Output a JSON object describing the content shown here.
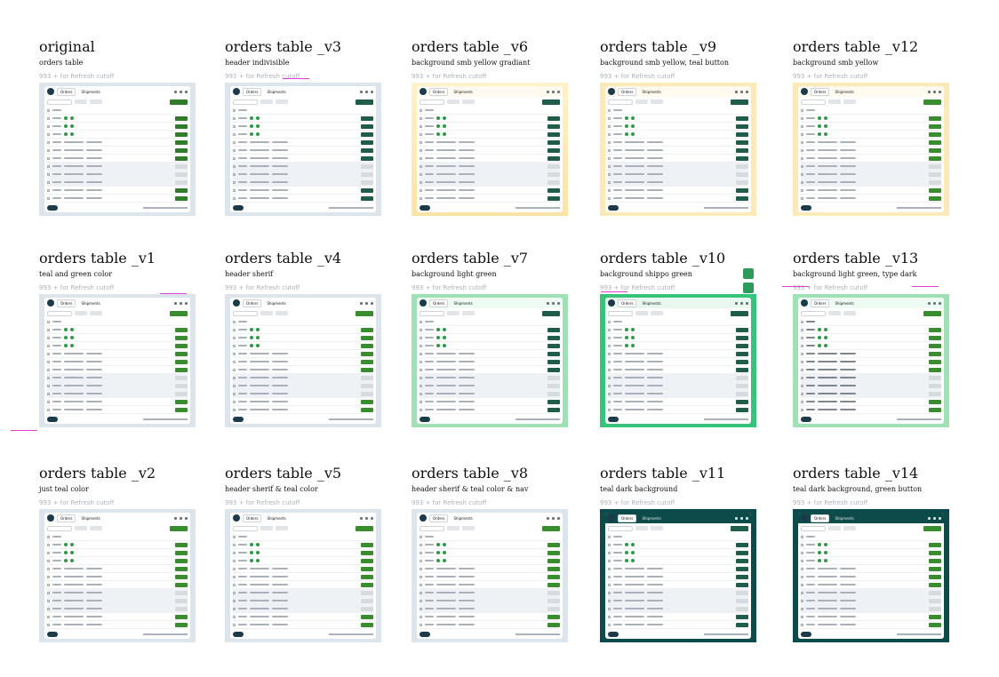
{
  "frames": [
    {
      "title": "original",
      "subtitle": "orders table",
      "variant": "original"
    },
    {
      "title": "orders table _v3",
      "subtitle": "header indivisible",
      "variant": "v3"
    },
    {
      "title": "orders table _v6",
      "subtitle": "background smb yellow gradiant",
      "variant": "yellowgrad"
    },
    {
      "title": "orders table _v9",
      "subtitle": "background smb yellow, teal button",
      "variant": "yellowteal"
    },
    {
      "title": "orders table _v12",
      "subtitle": "background smb yellow",
      "variant": "yellow"
    },
    {
      "title": "orders table _v1",
      "subtitle": "teal and green color",
      "variant": "v1"
    },
    {
      "title": "orders table _v4",
      "subtitle": "header sherif",
      "variant": "v4"
    },
    {
      "title": "orders table _v7",
      "subtitle": "background light green",
      "variant": "lightgreen"
    },
    {
      "title": "orders table _v10",
      "subtitle": "background shippo green",
      "variant": "shippogreen"
    },
    {
      "title": "orders table _v13",
      "subtitle": "background light green, type dark",
      "variant": "lightgreendark"
    },
    {
      "title": "orders table _v2",
      "subtitle": "just teal color",
      "variant": "v2"
    },
    {
      "title": "orders table _v5",
      "subtitle": "header sherif & teal color",
      "variant": "v5"
    },
    {
      "title": "orders table _v8",
      "subtitle": "header sherif & teal color & nav",
      "variant": "v8"
    },
    {
      "title": "orders table _v11",
      "subtitle": "teal dark background",
      "variant": "tealdark"
    },
    {
      "title": "orders table _v14",
      "subtitle": "teal dark background, green button",
      "variant": "tealdarkgreen"
    }
  ],
  "card": {
    "cutoff_label": "993 + for Refresh cutoff",
    "tabs": [
      "Orders",
      "Shipments"
    ],
    "create_label": "Create new label",
    "help_label": "Help",
    "rows_per_page_label": "Rows per page",
    "row_buttons": [
      "Buy",
      "Shipment"
    ]
  },
  "colors": {
    "teal_dark": "#0d4a4a",
    "smb_yellow": "#fbe9b7",
    "light_green": "#9fe0b4",
    "shippo_green": "#35c47a",
    "slate": "#dfe6ec",
    "button_green": "#3a8d2e",
    "button_teal": "#1f5c4a",
    "annotation_pink": "#e040d8"
  }
}
